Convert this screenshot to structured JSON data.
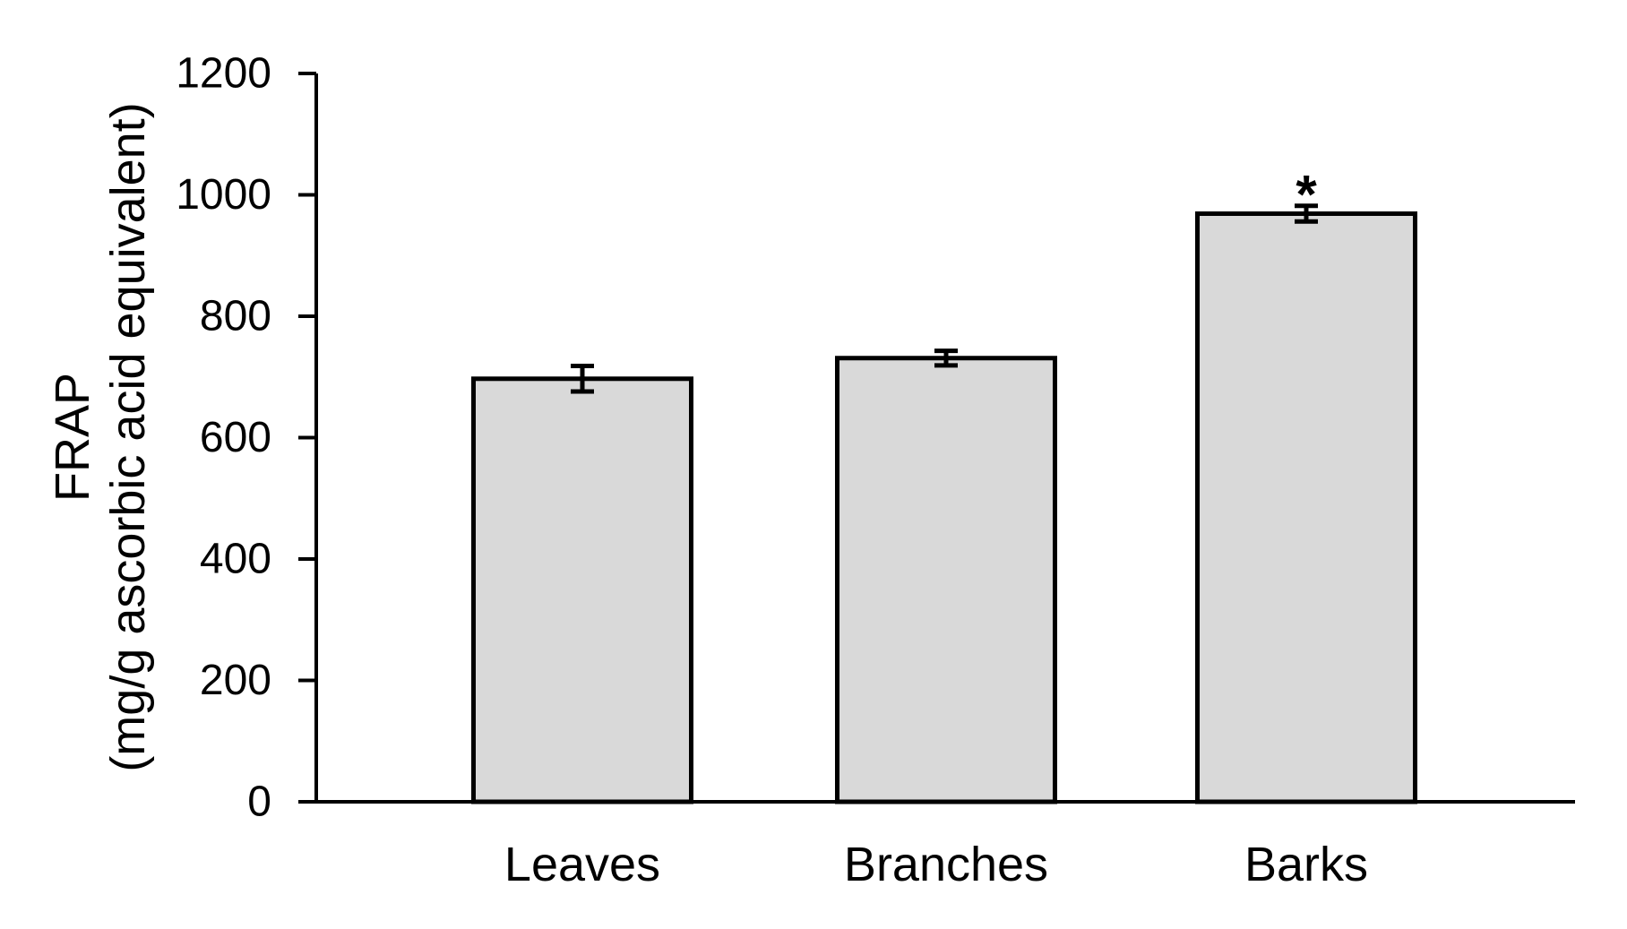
{
  "chart_data": {
    "type": "bar",
    "title": "",
    "categories": [
      "Leaves",
      "Branches",
      "Barks"
    ],
    "values": [
      697,
      731,
      969
    ],
    "errors": [
      21,
      12,
      13
    ],
    "ylabel_line1": "FRAP",
    "ylabel_line2": "(mg/g ascorbic acid equivalent)",
    "xlabel": "",
    "ylim": [
      0,
      1200
    ],
    "yticks": [
      0,
      200,
      400,
      600,
      800,
      1000,
      1200
    ],
    "grid": false,
    "legend": "none",
    "annotations": [
      {
        "category_index": 2,
        "text": "*",
        "meaning": "significance-marker"
      }
    ],
    "colors": {
      "bar_fill": "#d9d9d9",
      "bar_border": "#000000",
      "axis": "#000000",
      "text": "#000000",
      "background": "#ffffff"
    }
  }
}
